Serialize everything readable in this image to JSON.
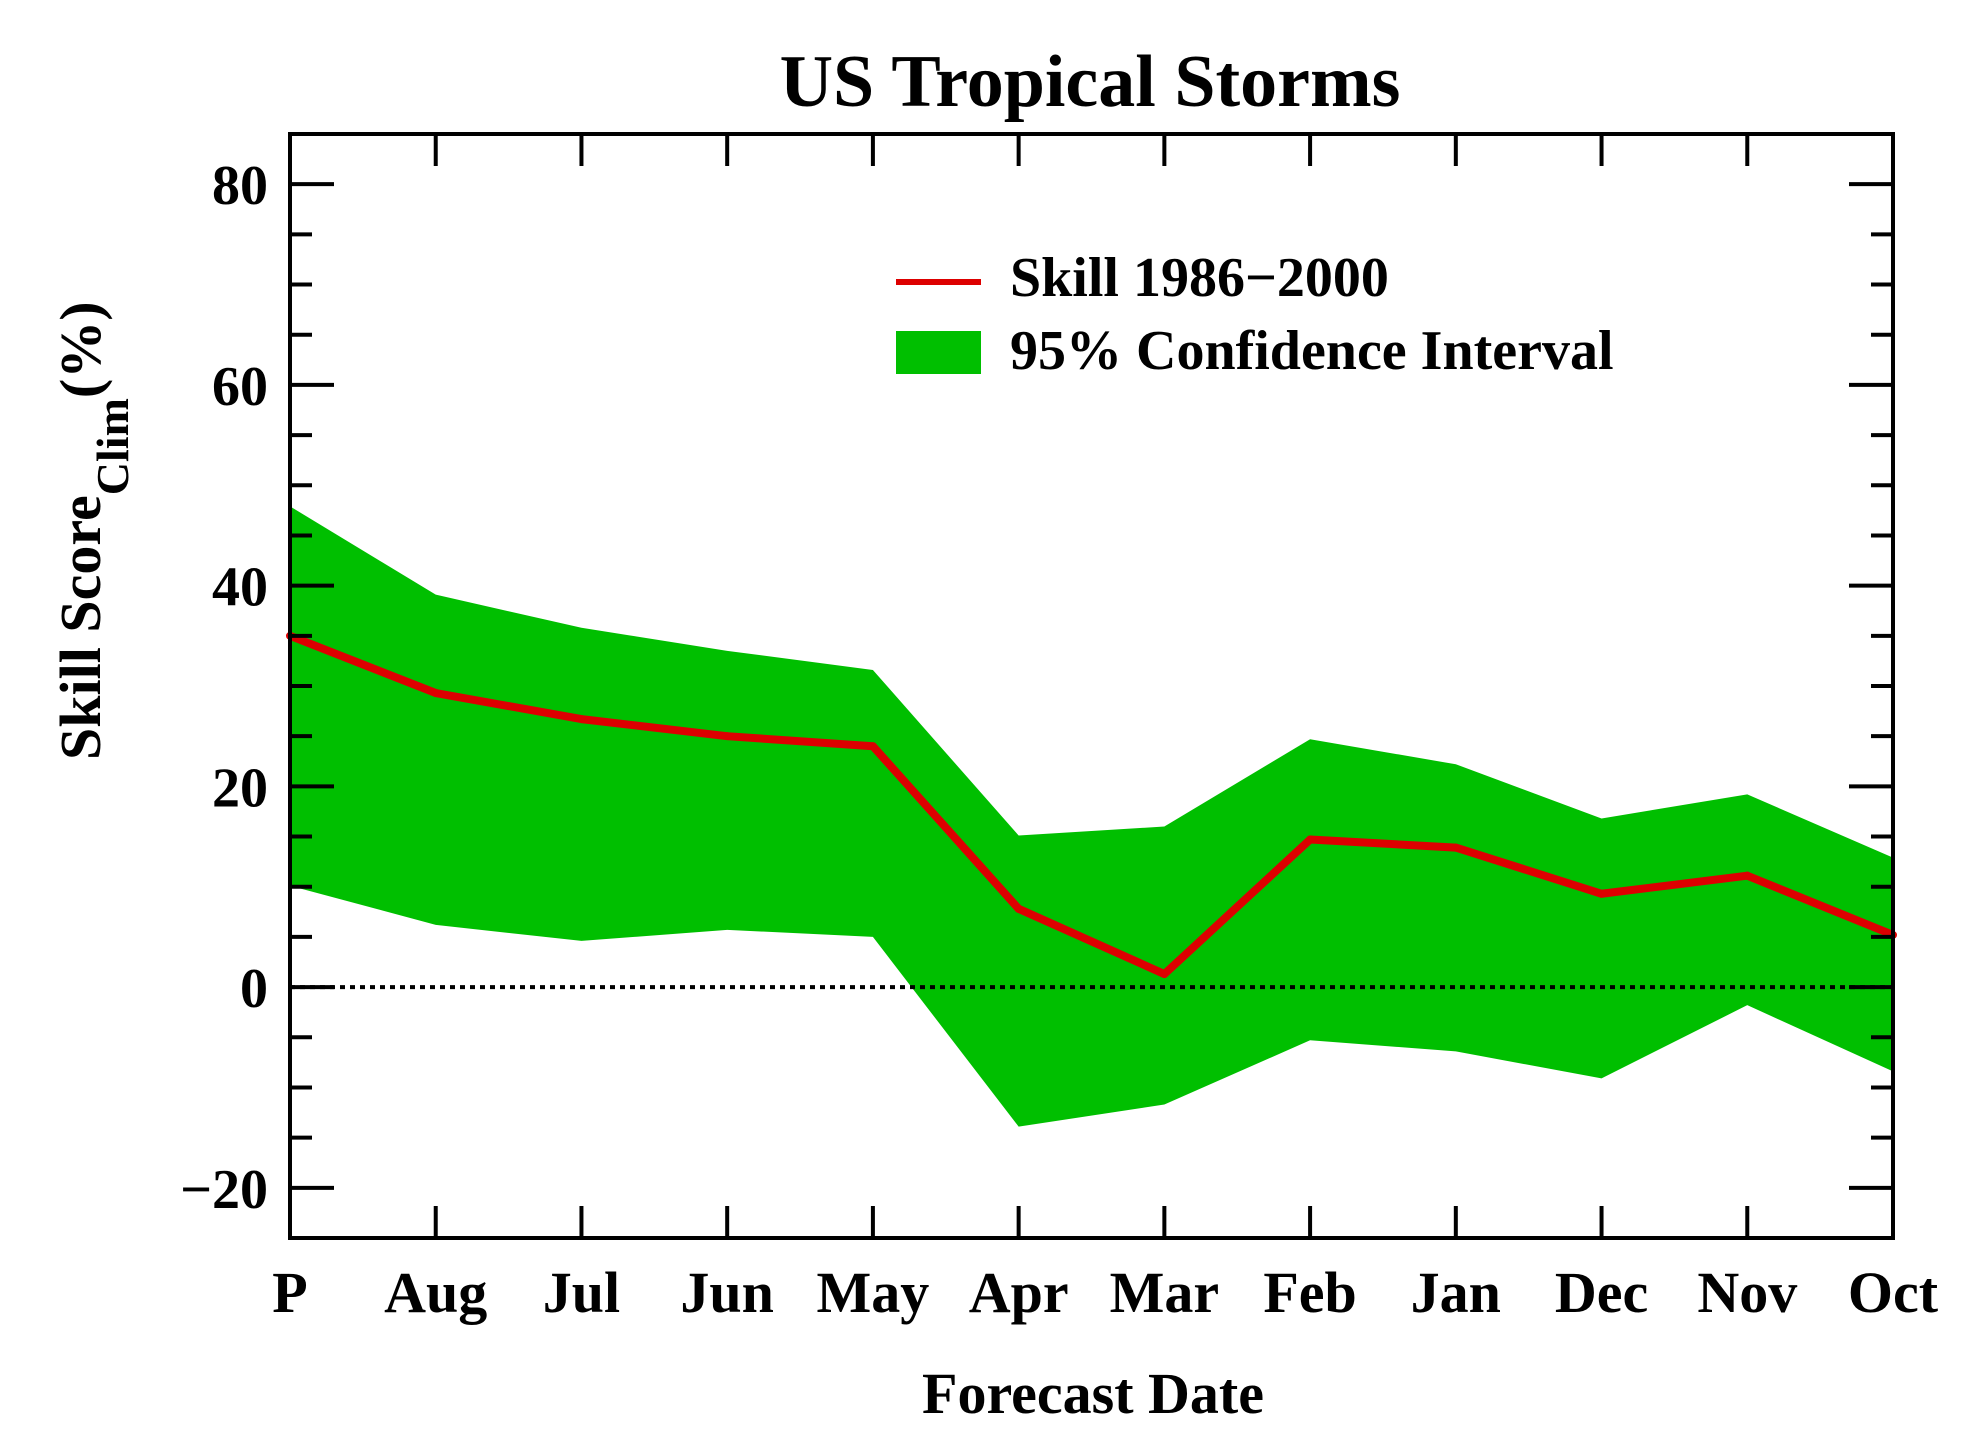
{
  "chart_data": {
    "type": "line",
    "title": "US Tropical Storms",
    "xlabel": "Forecast Date",
    "ylabel_main": "Skill Score",
    "ylabel_sub": "Clim",
    "ylabel_unit": "(%)",
    "categories": [
      "P",
      "Aug",
      "Jul",
      "Jun",
      "May",
      "Apr",
      "Mar",
      "Feb",
      "Jan",
      "Dec",
      "Nov",
      "Oct"
    ],
    "ylim": [
      -25,
      85
    ],
    "yticks": [
      -20,
      0,
      20,
      40,
      60,
      80
    ],
    "ytick_labels": [
      "−20",
      "0",
      "20",
      "40",
      "60",
      "80"
    ],
    "series": [
      {
        "name": "Skill 1986−2000",
        "color": "#dd0000",
        "values": [
          35,
          29.3,
          26.7,
          25,
          24,
          7.8,
          1.3,
          14.7,
          13.9,
          9.3,
          11.1,
          5.2
        ]
      }
    ],
    "band": {
      "name": "95% Confidence Interval",
      "color": "#00bf00",
      "upper": [
        47.9,
        39.1,
        35.8,
        33.5,
        31.6,
        15.1,
        16,
        24.7,
        22.2,
        16.8,
        19.2,
        12.9
      ],
      "lower": [
        10.1,
        6.2,
        4.6,
        5.7,
        5,
        -13.9,
        -11.7,
        -5.3,
        -6.4,
        -9.1,
        -1.8,
        -8.4
      ]
    },
    "zero_line": true,
    "grid": false,
    "legend_position": "top-right"
  }
}
